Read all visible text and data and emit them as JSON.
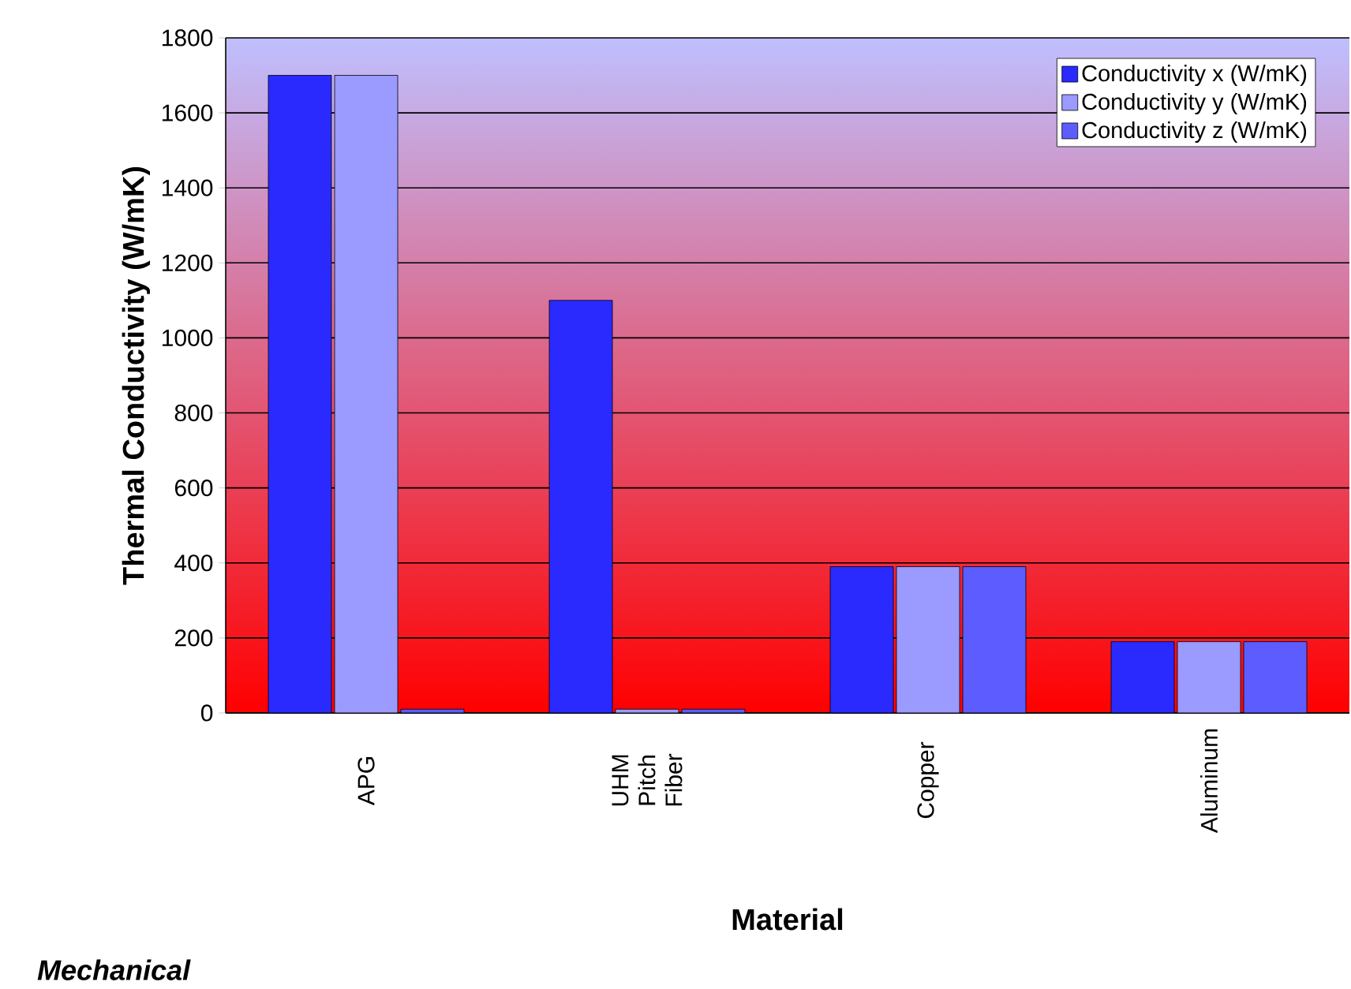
{
  "chart_data": {
    "type": "bar",
    "xlabel": "Material",
    "ylabel": "Thermal Conductivity (W/mK)",
    "categories": [
      "APG",
      "UHM Pitch Fiber",
      "Copper",
      "Aluminum"
    ],
    "series": [
      {
        "name": "Conductivity x (W/mK)",
        "color": "#2a2aff",
        "values": [
          1700,
          1100,
          390,
          190
        ]
      },
      {
        "name": "Conductivity y (W/mK)",
        "color": "#9a9aff",
        "values": [
          1700,
          10,
          390,
          190
        ]
      },
      {
        "name": "Conductivity z (W/mK)",
        "color": "#5c5cff",
        "values": [
          10,
          10,
          390,
          190
        ]
      }
    ],
    "ylim": [
      0,
      1800
    ],
    "yticks": [
      0,
      200,
      400,
      600,
      800,
      1000,
      1200,
      1400,
      1600,
      1800
    ],
    "grid": "y",
    "legend": "top right",
    "annotations": [
      "*Mechanical*"
    ]
  }
}
